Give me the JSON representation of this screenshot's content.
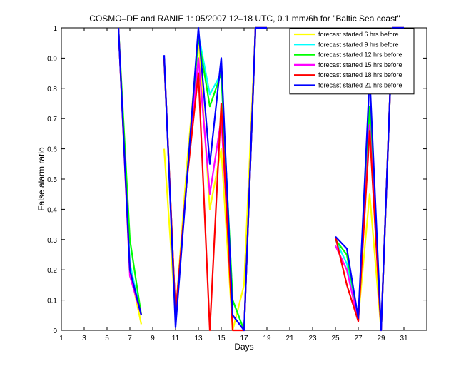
{
  "chart_data": {
    "type": "line",
    "title": "COSMO–DE and RANIE 1: 05/2007 12–18 UTC, 0.1 mm/6h for \"Baltic Sea coast\"",
    "xlabel": "Days",
    "ylabel": "False alarm ratio",
    "xlim": [
      1,
      33
    ],
    "ylim": [
      0,
      1
    ],
    "xticks": [
      1,
      3,
      5,
      7,
      9,
      11,
      13,
      15,
      17,
      19,
      21,
      23,
      25,
      27,
      29,
      31
    ],
    "yticks": [
      0,
      0.1,
      0.2,
      0.3,
      0.4,
      0.5,
      0.6,
      0.7,
      0.8,
      0.9,
      1
    ],
    "ytick_labels": [
      "0",
      "0.1",
      "0.2",
      "0.3",
      "0.4",
      "0.5",
      "0.6",
      "0.7",
      "0.8",
      "0.9",
      "1"
    ],
    "grid": false,
    "legend_position": "top-right",
    "series": [
      {
        "name": "forecast started 6 hrs before",
        "color": "#ffff00",
        "points": [
          [
            6,
            1.0
          ],
          [
            7,
            0.2
          ],
          [
            8,
            0.02
          ],
          null,
          [
            10,
            0.6
          ],
          [
            11,
            0.05
          ],
          [
            12,
            0.55
          ],
          [
            13,
            0.97
          ],
          [
            14,
            0.4
          ],
          [
            15,
            0.6
          ],
          [
            16,
            0.0
          ],
          [
            17,
            0.15
          ],
          [
            18,
            1.0
          ],
          [
            19,
            1.0
          ],
          null,
          [
            25,
            0.28
          ],
          [
            26,
            0.2
          ],
          [
            27,
            0.04
          ],
          [
            28,
            0.45
          ],
          [
            29,
            0.0
          ],
          [
            30,
            1.0
          ],
          [
            31,
            1.0
          ]
        ]
      },
      {
        "name": "forecast started 9 hrs before",
        "color": "#00ffff",
        "points": [
          [
            6,
            1.0
          ],
          [
            7,
            0.22
          ],
          [
            8,
            0.05
          ],
          null,
          [
            10,
            0.9
          ],
          [
            11,
            0.05
          ],
          [
            12,
            0.5
          ],
          [
            13,
            0.98
          ],
          [
            14,
            0.78
          ],
          [
            15,
            0.85
          ],
          [
            16,
            0.1
          ],
          [
            17,
            0.0
          ],
          [
            18,
            1.0
          ],
          [
            19,
            1.0
          ],
          null,
          [
            25,
            0.3
          ],
          [
            26,
            0.22
          ],
          [
            27,
            0.04
          ],
          [
            28,
            0.72
          ],
          [
            29,
            0.0
          ],
          [
            30,
            1.0
          ],
          [
            31,
            1.0
          ]
        ]
      },
      {
        "name": "forecast started 12 hrs before",
        "color": "#00ff00",
        "points": [
          [
            6,
            1.0
          ],
          [
            7,
            0.3
          ],
          [
            8,
            0.05
          ],
          null,
          [
            10,
            0.9
          ],
          [
            11,
            0.05
          ],
          [
            12,
            0.5
          ],
          [
            13,
            0.97
          ],
          [
            14,
            0.74
          ],
          [
            15,
            0.85
          ],
          [
            16,
            0.1
          ],
          [
            17,
            0.0
          ],
          [
            18,
            1.0
          ],
          [
            19,
            1.0
          ],
          null,
          [
            25,
            0.3
          ],
          [
            26,
            0.25
          ],
          [
            27,
            0.04
          ],
          [
            28,
            0.74
          ],
          [
            29,
            0.0
          ],
          [
            30,
            1.0
          ],
          [
            31,
            1.0
          ]
        ]
      },
      {
        "name": "forecast started 15 hrs before",
        "color": "#ff00ff",
        "points": [
          [
            6,
            1.0
          ],
          [
            7,
            0.18
          ],
          [
            8,
            0.05
          ],
          null,
          [
            10,
            0.9
          ],
          [
            11,
            0.05
          ],
          [
            12,
            0.5
          ],
          [
            13,
            0.9
          ],
          [
            14,
            0.45
          ],
          [
            15,
            0.7
          ],
          [
            16,
            0.05
          ],
          [
            17,
            0.0
          ],
          [
            18,
            1.0
          ],
          [
            19,
            1.0
          ],
          null,
          [
            25,
            0.28
          ],
          [
            26,
            0.2
          ],
          [
            27,
            0.03
          ],
          [
            28,
            0.68
          ],
          [
            29,
            0.0
          ],
          [
            30,
            1.0
          ],
          [
            31,
            1.0
          ]
        ]
      },
      {
        "name": "forecast started 18 hrs before",
        "color": "#ff0000",
        "points": [
          [
            6,
            1.0
          ],
          [
            7,
            0.2
          ],
          [
            8,
            0.05
          ],
          null,
          [
            10,
            0.9
          ],
          [
            11,
            0.05
          ],
          [
            12,
            0.5
          ],
          [
            13,
            0.85
          ],
          [
            14,
            0.0
          ],
          [
            15,
            0.75
          ],
          [
            16,
            0.0
          ],
          [
            17,
            0.0
          ],
          [
            18,
            1.0
          ],
          [
            19,
            1.0
          ],
          null,
          [
            25,
            0.31
          ],
          [
            26,
            0.15
          ],
          [
            27,
            0.03
          ],
          [
            28,
            0.66
          ],
          [
            29,
            0.0
          ],
          [
            30,
            1.0
          ],
          [
            31,
            1.0
          ]
        ]
      },
      {
        "name": "forecast started 21 hrs before",
        "color": "#0000ff",
        "points": [
          [
            6,
            1.0
          ],
          [
            7,
            0.2
          ],
          [
            8,
            0.05
          ],
          null,
          [
            10,
            0.91
          ],
          [
            11,
            0.01
          ],
          [
            12,
            0.5
          ],
          [
            13,
            1.0
          ],
          [
            14,
            0.55
          ],
          [
            15,
            0.9
          ],
          [
            16,
            0.05
          ],
          [
            17,
            0.0
          ],
          [
            18,
            1.0
          ],
          [
            19,
            1.0
          ],
          null,
          [
            25,
            0.31
          ],
          [
            26,
            0.27
          ],
          [
            27,
            0.04
          ],
          [
            28,
            0.84
          ],
          [
            29,
            0.0
          ],
          [
            30,
            1.0
          ],
          [
            31,
            1.0
          ]
        ]
      }
    ]
  }
}
